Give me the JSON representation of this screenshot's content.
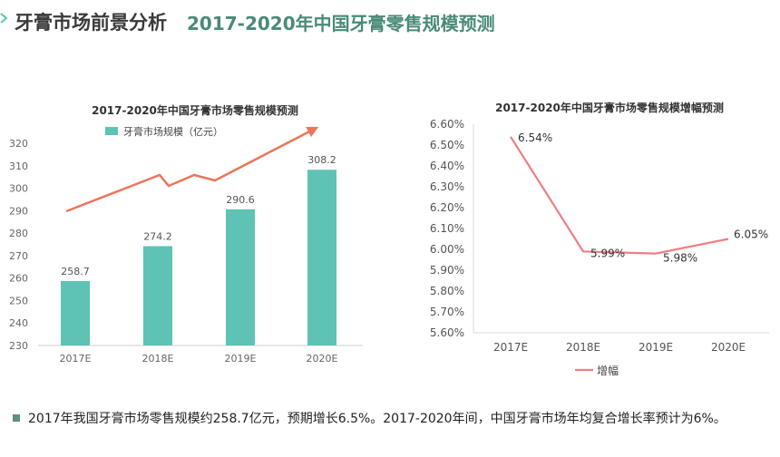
{
  "header": {
    "title": "牙膏市场前景分析",
    "subtitle": "2017-2020年中国牙膏零售规模预测"
  },
  "colors": {
    "bar": "#5ec3b4",
    "trend_arrow": "#e9765b",
    "growth_line": "#ef7d84",
    "subtitle": "#4a8a79",
    "axis": "#cfcfcf"
  },
  "chart_data": [
    {
      "type": "bar",
      "title": "2017-2020年中国牙膏市场零售规模预测",
      "categories": [
        "2017E",
        "2018E",
        "2019E",
        "2020E"
      ],
      "series": [
        {
          "name": "牙膏市场规模（亿元）",
          "values": [
            258.7,
            274.2,
            290.6,
            308.2
          ]
        }
      ],
      "data_labels": [
        "258.7",
        "274.2",
        "290.6",
        "308.2"
      ],
      "y_ticks": [
        "230",
        "240",
        "250",
        "260",
        "270",
        "280",
        "290",
        "300",
        "310",
        "320"
      ],
      "ylim": [
        230,
        320
      ],
      "legend_position": "top",
      "grid": false,
      "annotation": "upward trend arrow"
    },
    {
      "type": "line",
      "title": "2017-2020年中国牙膏市场零售规模增幅预测",
      "categories": [
        "2017E",
        "2018E",
        "2019E",
        "2020E"
      ],
      "series": [
        {
          "name": "增幅",
          "values": [
            6.54,
            5.99,
            5.98,
            6.05
          ]
        }
      ],
      "data_labels": [
        "6.54%",
        "5.99%",
        "5.98%",
        "6.05%"
      ],
      "y_ticks": [
        "5.60%",
        "5.70%",
        "5.80%",
        "5.90%",
        "6.00%",
        "6.10%",
        "6.20%",
        "6.30%",
        "6.40%",
        "6.50%",
        "6.60%"
      ],
      "ylim": [
        5.6,
        6.6
      ],
      "legend_position": "bottom",
      "grid": false
    }
  ],
  "footnote": "2017年我国牙膏市场零售规模约258.7亿元，预期增长6.5%。2017-2020年间，中国牙膏市场年均复合增长率预计为6%。"
}
